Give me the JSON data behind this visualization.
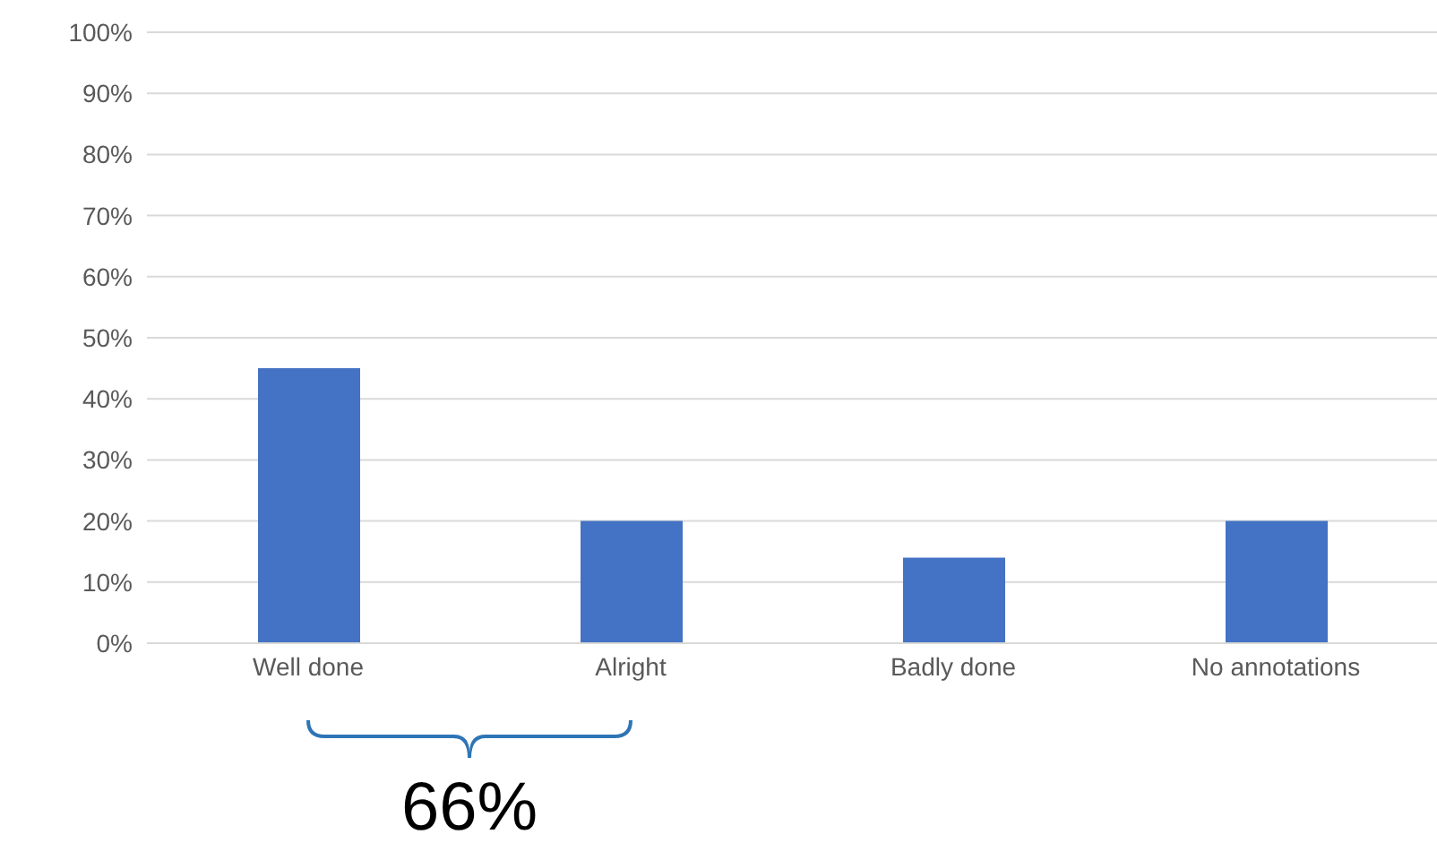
{
  "chart_data": {
    "type": "bar",
    "categories": [
      "Well done",
      "Alright",
      "Badly done",
      "No annotations"
    ],
    "values": [
      45,
      20,
      14,
      20
    ],
    "color": "#4472c4",
    "ylim": [
      0,
      100
    ],
    "yticks": [
      {
        "value": 0,
        "label": "0%"
      },
      {
        "value": 10,
        "label": "10%"
      },
      {
        "value": 20,
        "label": "20%"
      },
      {
        "value": 30,
        "label": "30%"
      },
      {
        "value": 40,
        "label": "40%"
      },
      {
        "value": 50,
        "label": "50%"
      },
      {
        "value": 60,
        "label": "60%"
      },
      {
        "value": 70,
        "label": "70%"
      },
      {
        "value": 80,
        "label": "80%"
      },
      {
        "value": 90,
        "label": "90%"
      },
      {
        "value": 100,
        "label": "100%"
      }
    ],
    "grid": "y",
    "annotations": [
      "66%"
    ]
  }
}
